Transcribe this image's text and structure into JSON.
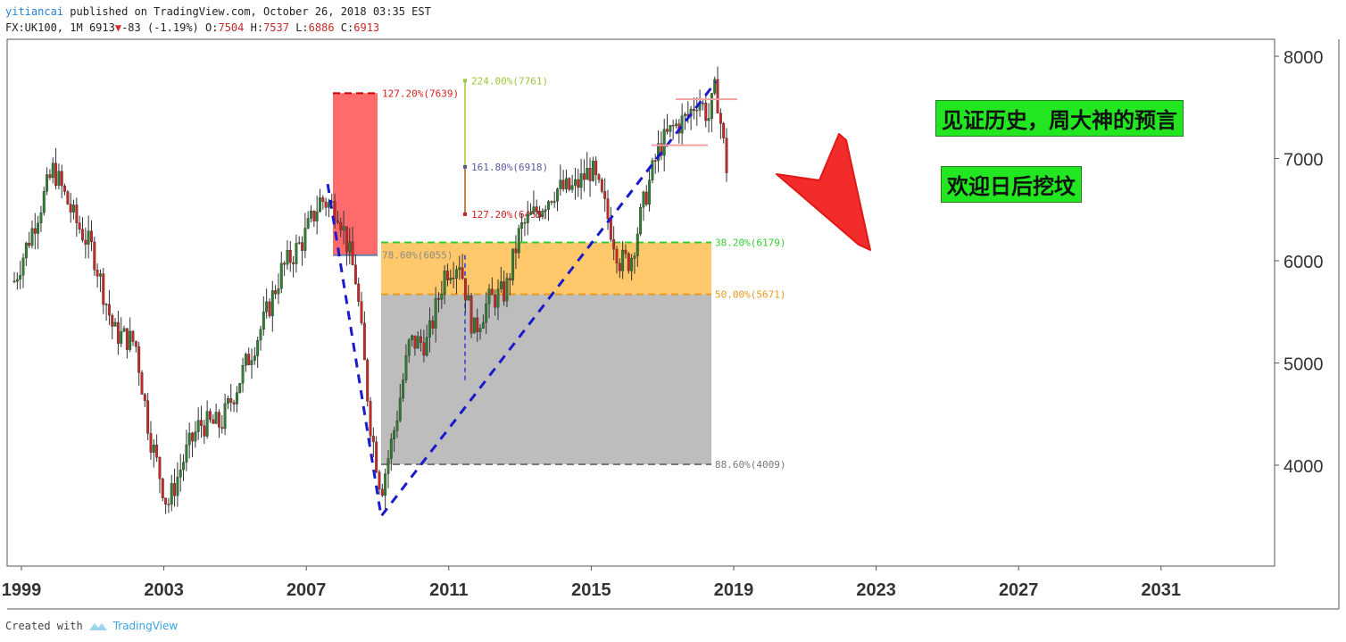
{
  "header": {
    "author": "yitiancai",
    "published_text": "published on TradingView.com, October 26, 2018 03:35 EST",
    "symbol": "FX:UK100, 1M",
    "last": "6913",
    "change": "-83 (-1.19%)",
    "o_label": "O:",
    "o_value": "7504",
    "h_label": "H:",
    "h_value": "7537",
    "l_label": "L:",
    "l_value": "6886",
    "c_label": "C:",
    "c_value": "6913"
  },
  "annotations": {
    "banner1": "见证历史，周大神的预言",
    "banner2": "欢迎日后挖坟"
  },
  "footer": {
    "created_with": "Created with",
    "brand": "TradingView"
  },
  "chart_data": {
    "type": "candlestick",
    "xlabel": "",
    "ylabel": "",
    "x_ticks": [
      "1999",
      "2003",
      "2007",
      "2011",
      "2015",
      "2019",
      "2023",
      "2027",
      "2031"
    ],
    "y_ticks": [
      4000,
      5000,
      6000,
      7000,
      8000
    ],
    "xlim": [
      1999.0,
      2032.0
    ],
    "ylim": [
      3200,
      8150
    ],
    "colors": {
      "up": "#2e7d32",
      "down": "#c62828",
      "fib_box_orange": "#ffc86b",
      "fib_box_gray": "#bdbdbd",
      "fib_box_red": "#ff6b6b",
      "trend_line": "#1a1acd"
    },
    "price_path": [
      [
        "1998.8",
        5800
      ],
      [
        "1999.3",
        6300
      ],
      [
        "1999.9",
        6900
      ],
      [
        "2000.5",
        6400
      ],
      [
        "2001.0",
        6100
      ],
      [
        "2001.6",
        5300
      ],
      [
        "2002.2",
        5200
      ],
      [
        "2002.6",
        4300
      ],
      [
        "2003.1",
        3600
      ],
      [
        "2003.6",
        4100
      ],
      [
        "2004.0",
        4400
      ],
      [
        "2004.6",
        4400
      ],
      [
        "2005.2",
        4900
      ],
      [
        "2005.8",
        5400
      ],
      [
        "2006.3",
        5900
      ],
      [
        "2006.9",
        6200
      ],
      [
        "2007.4",
        6600
      ],
      [
        "2007.9",
        6500
      ],
      [
        "2008.4",
        5800
      ],
      [
        "2008.8",
        4400
      ],
      [
        "2009.1",
        3750
      ],
      [
        "2009.5",
        4400
      ],
      [
        "2009.9",
        5200
      ],
      [
        "2010.4",
        5200
      ],
      [
        "2010.9",
        5900
      ],
      [
        "2011.3",
        6000
      ],
      [
        "2011.7",
        5300
      ],
      [
        "2012.1",
        5600
      ],
      [
        "2012.6",
        5700
      ],
      [
        "2013.0",
        6300
      ],
      [
        "2013.5",
        6500
      ],
      [
        "2014.0",
        6700
      ],
      [
        "2014.5",
        6700
      ],
      [
        "2015.0",
        6900
      ],
      [
        "2015.4",
        6500
      ],
      [
        "2015.8",
        6000
      ],
      [
        "2016.1",
        6000
      ],
      [
        "2016.5",
        6600
      ],
      [
        "2016.9",
        7100
      ],
      [
        "2017.3",
        7300
      ],
      [
        "2017.7",
        7400
      ],
      [
        "2018.0",
        7600
      ],
      [
        "2018.3",
        7400
      ],
      [
        "2018.5",
        7700
      ],
      [
        "2018.8",
        6913
      ]
    ],
    "fib_levels": [
      {
        "label": "127.20%(7639)",
        "value": 7639
      },
      {
        "label": "224.00%(7761)",
        "value": 7761
      },
      {
        "label": "161.80%(6918)",
        "value": 6918
      },
      {
        "label": "127.20%(6455)",
        "value": 6455
      },
      {
        "label": "78.60%(6055)",
        "value": 6055
      },
      {
        "label": "38.20%(6179)",
        "value": 6179
      },
      {
        "label": "50.00%(5671)",
        "value": 5671
      },
      {
        "label": "88.60%(4009)",
        "value": 4009
      }
    ],
    "price_marker": {
      "label": "7000",
      "value": 7000
    },
    "trend_points": [
      [
        "2007.6",
        6750
      ],
      [
        "2009.1",
        3500
      ],
      [
        "2018.5",
        7750
      ]
    ]
  }
}
